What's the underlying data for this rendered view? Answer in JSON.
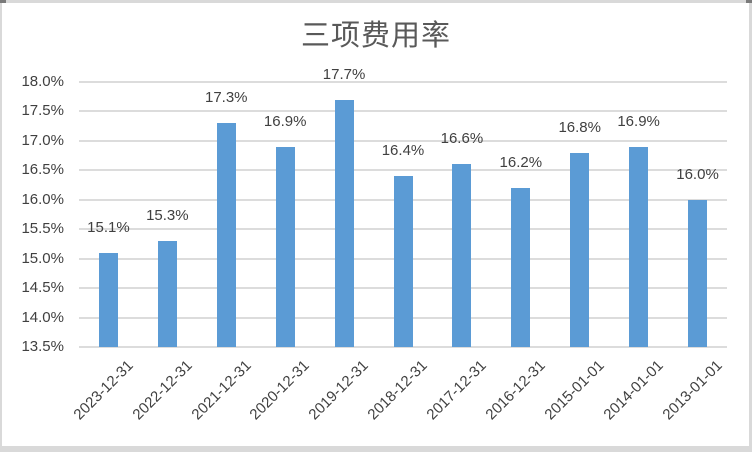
{
  "chart_data": {
    "type": "bar",
    "title": "三项费用率",
    "categories": [
      "2023-12-31",
      "2022-12-31",
      "2021-12-31",
      "2020-12-31",
      "2019-12-31",
      "2018-12-31",
      "2017-12-31",
      "2016-12-31",
      "2015-01-01",
      "2014-01-01",
      "2013-01-01"
    ],
    "values": [
      15.1,
      15.3,
      17.3,
      16.9,
      17.7,
      16.4,
      16.6,
      16.2,
      16.8,
      16.9,
      16.0
    ],
    "data_labels": [
      "15.1%",
      "15.3%",
      "17.3%",
      "16.9%",
      "17.7%",
      "16.4%",
      "16.6%",
      "16.2%",
      "16.8%",
      "16.9%",
      "16.0%"
    ],
    "xlabel": "",
    "ylabel": "",
    "ylim": [
      13.5,
      18.0
    ],
    "ytick_step": 0.5,
    "ytick_labels": [
      "18.0%",
      "17.5%",
      "17.0%",
      "16.5%",
      "16.0%",
      "15.5%",
      "15.0%",
      "14.5%",
      "14.0%",
      "13.5%"
    ],
    "grid": true,
    "legend": "none",
    "bar_color": "#5B9BD5",
    "gridline_color": "#DCDCDC",
    "title_color": "#595959",
    "label_color": "#404040",
    "frame_border_color": "#D9D9D9"
  }
}
